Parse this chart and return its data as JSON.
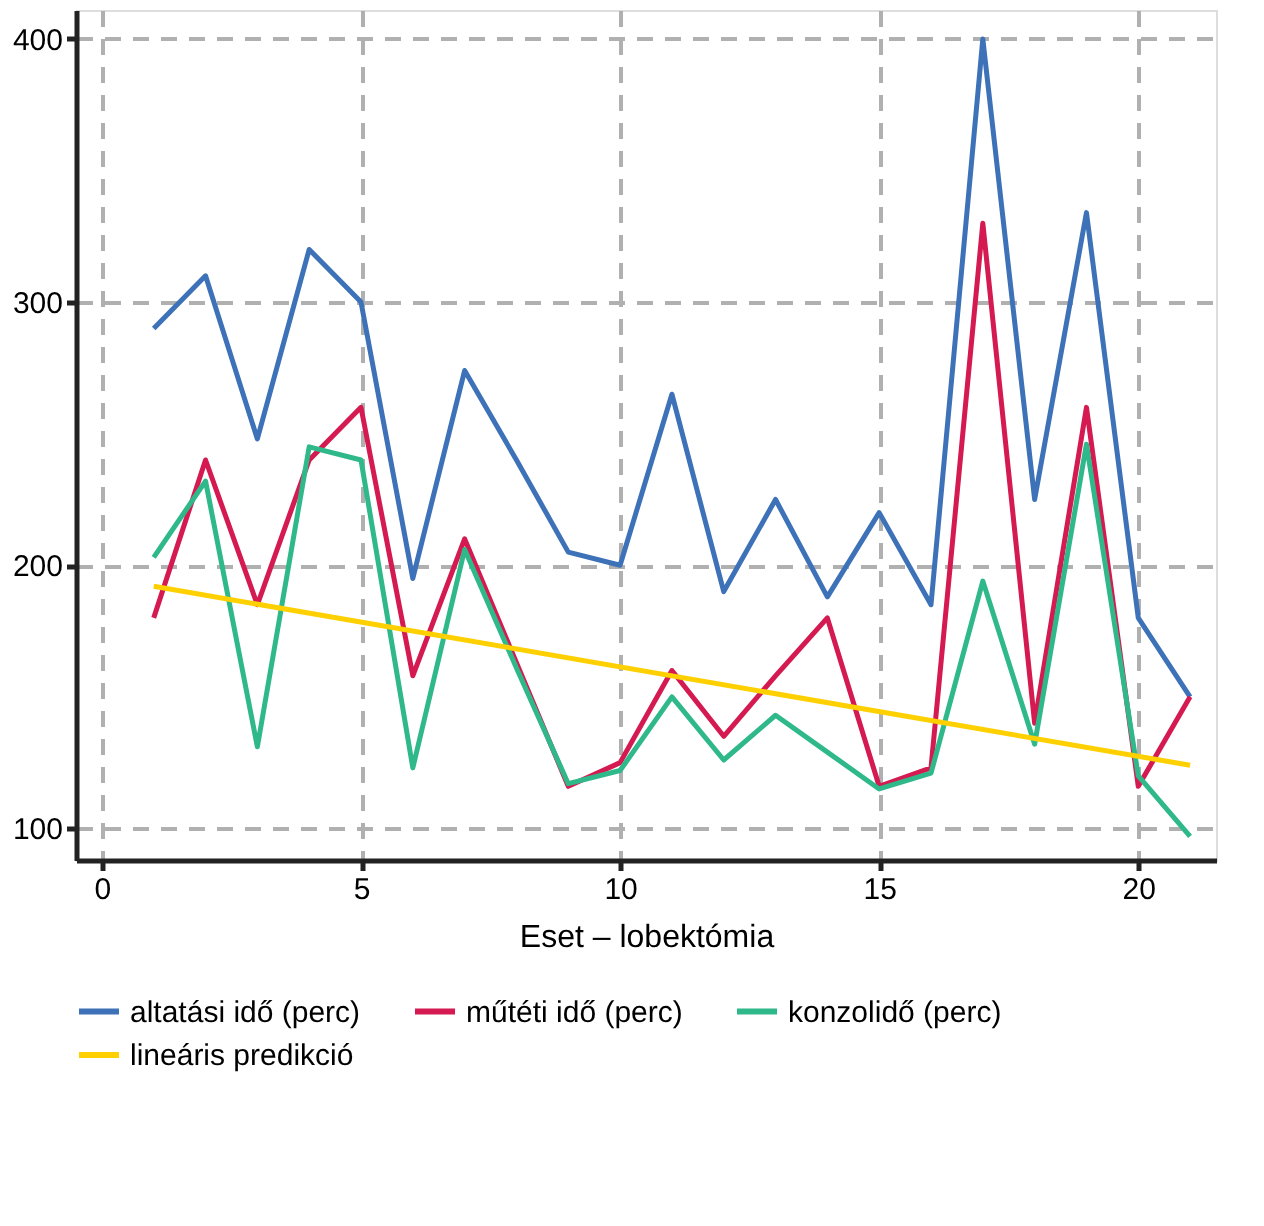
{
  "chart_data": {
    "type": "line",
    "xlabel": "Eset – lobektómia",
    "x": [
      1,
      2,
      3,
      4,
      5,
      6,
      7,
      8,
      9,
      10,
      11,
      12,
      13,
      14,
      15,
      16,
      17,
      18,
      19,
      20,
      21
    ],
    "series": [
      {
        "name": "altatási idő (perc)",
        "color": "#3d72b8",
        "values": [
          290,
          310,
          248,
          320,
          300,
          195,
          274,
          240,
          205,
          200,
          265,
          190,
          225,
          188,
          220,
          185,
          400,
          225,
          334,
          180,
          150
        ]
      },
      {
        "name": "műtéti idő (perc)",
        "color": "#d41a50",
        "values": [
          180,
          240,
          185,
          240,
          260,
          158,
          210,
          163,
          116,
          125,
          160,
          135,
          158,
          180,
          116,
          123,
          330,
          140,
          260,
          116,
          150
        ]
      },
      {
        "name": "konzolidő (perc)",
        "color": "#2fb98a",
        "values": [
          203,
          232,
          131,
          245,
          240,
          123,
          206,
          161,
          117,
          122,
          150,
          126,
          143,
          129,
          115,
          121,
          194,
          132,
          246,
          120,
          97
        ]
      },
      {
        "name": "lineáris predikció",
        "color": "#ffd000",
        "x": [
          1,
          21
        ],
        "values": [
          192,
          124
        ]
      }
    ],
    "xlim": [
      -0.5,
      21.5
    ],
    "xticks": [
      0,
      5,
      10,
      15,
      20
    ],
    "ylim": [
      88,
      411
    ],
    "yticks": [
      100,
      200,
      300,
      400
    ],
    "grid": true,
    "legend": "bottom",
    "line_style": "solid",
    "marker": "none"
  }
}
